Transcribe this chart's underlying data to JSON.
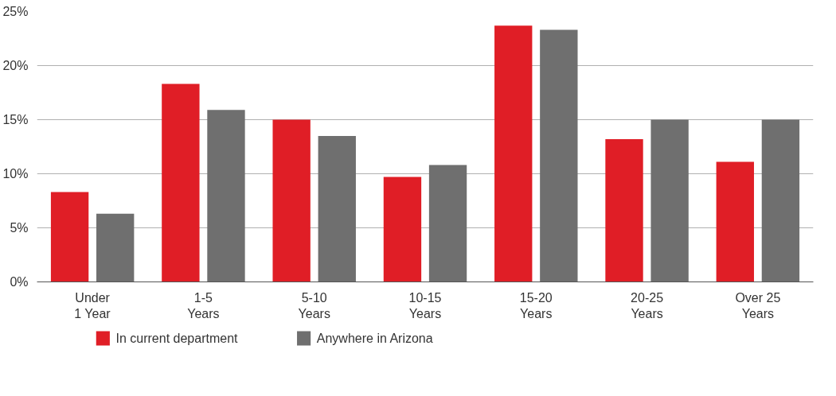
{
  "chart_data": {
    "type": "bar",
    "categories": [
      "Under\n1 Year",
      "1-5\nYears",
      "5-10\nYears",
      "10-15\nYears",
      "15-20\nYears",
      "20-25\nYears",
      "Over 25\nYears"
    ],
    "series": [
      {
        "name": "In current department",
        "color": "#e01e26",
        "values": [
          8.3,
          18.3,
          15.0,
          9.7,
          23.7,
          13.2,
          11.1
        ]
      },
      {
        "name": "Anywhere in Arizona",
        "color": "#6f6f6f",
        "values": [
          6.3,
          15.9,
          13.5,
          10.8,
          23.3,
          15.0,
          15.0
        ]
      }
    ],
    "ylim": [
      0,
      25
    ],
    "yticks": [
      {
        "value": 0,
        "label": "0%"
      },
      {
        "value": 5,
        "label": "5%"
      },
      {
        "value": 10,
        "label": "10%"
      },
      {
        "value": 15,
        "label": "15%"
      },
      {
        "value": 20,
        "label": "20%"
      },
      {
        "value": 25,
        "label": "25%"
      }
    ],
    "grid": "y",
    "legend": "bottom left"
  }
}
